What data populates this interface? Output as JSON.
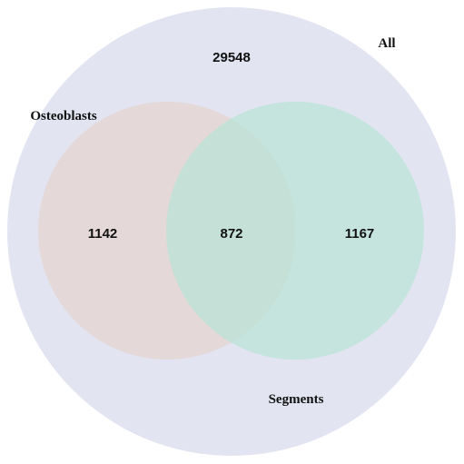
{
  "sets": {
    "universe": {
      "label": "All",
      "color": "#e2e5f1"
    },
    "left": {
      "label": "Osteoblasts",
      "color": "#e4d8d8"
    },
    "right": {
      "label": "Segments",
      "color": "#c8e5dd"
    }
  },
  "counts": {
    "outside": "29548",
    "left_only": "1142",
    "intersection": "872",
    "right_only": "1167"
  }
}
